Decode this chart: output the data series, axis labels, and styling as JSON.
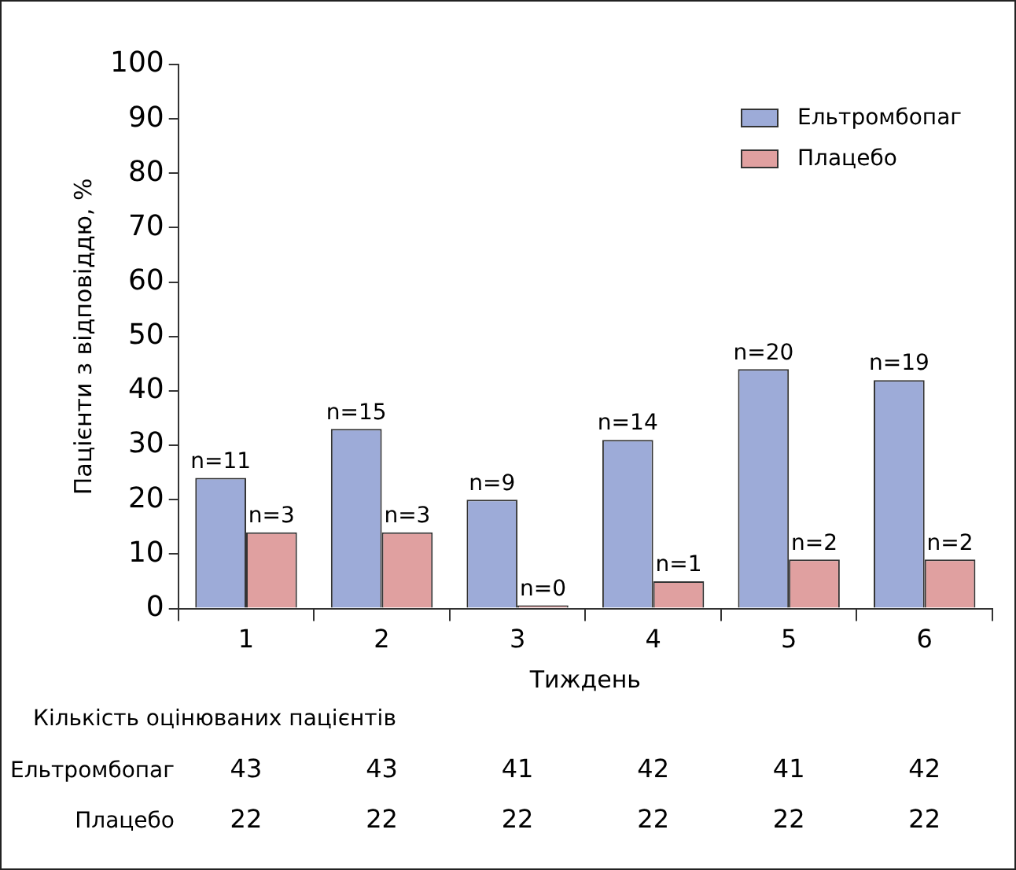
{
  "chart_data": {
    "type": "bar",
    "xlabel": "Тиждень",
    "ylabel": "Пацієнти з відповіддю, %",
    "categories": [
      "1",
      "2",
      "3",
      "4",
      "5",
      "6"
    ],
    "series": [
      {
        "name": "Ельтромбопаг",
        "color": "#9dabd8",
        "values": [
          24,
          33,
          20,
          31,
          44,
          42
        ]
      },
      {
        "name": "Плацебо",
        "color": "#e0a0a0",
        "values": [
          14,
          14,
          0,
          5,
          9,
          9
        ]
      }
    ],
    "ylim": [
      0,
      100
    ],
    "yticks": [
      0,
      10,
      20,
      30,
      40,
      50,
      60,
      70,
      80,
      90,
      100
    ],
    "grid": false,
    "legend": "top right",
    "annotations": [
      "Кількість оцінюваних пацієнтів",
      "Ельтромбопаг",
      "43",
      "43",
      "41",
      "42",
      "41",
      "42",
      "Плацебо",
      "22",
      "22",
      "22",
      "22",
      "22",
      "22",
      {
        "text": "n=11",
        "x": "1",
        "y": 24
      },
      {
        "text": "n=15",
        "x": "2",
        "y": 33
      },
      {
        "text": "n=9",
        "x": "3",
        "y": 20
      },
      {
        "text": "n=14",
        "x": "4",
        "y": 31
      },
      {
        "text": "n=20",
        "x": "5",
        "y": 44
      },
      {
        "text": "n=19",
        "x": "6",
        "y": 42
      },
      {
        "text": "n=3",
        "x": "1",
        "y": 14
      },
      {
        "text": "n=3",
        "x": "2",
        "y": 14
      },
      {
        "text": "n=0",
        "x": "3",
        "y": 0
      },
      {
        "text": "n=1",
        "x": "4",
        "y": 5
      },
      {
        "text": "n=2",
        "x": "5",
        "y": 9
      },
      {
        "text": "n=2",
        "x": "6",
        "y": 9
      }
    ]
  }
}
